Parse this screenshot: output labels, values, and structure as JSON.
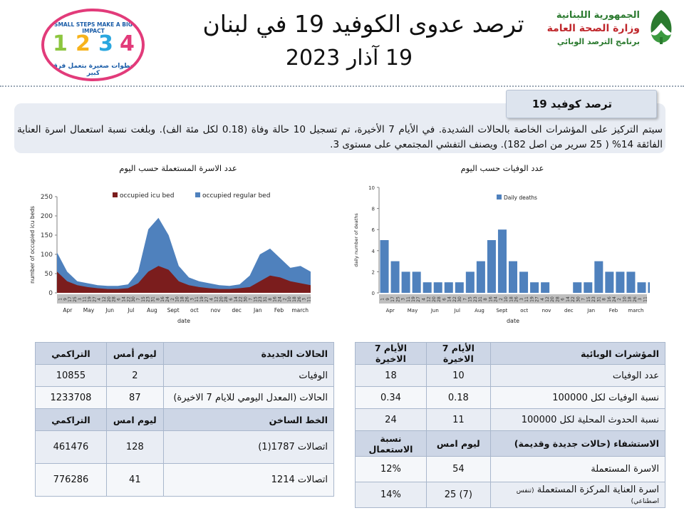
{
  "header": {
    "title": "ترصد عدوى الكوفيد 19 في لبنان",
    "date": "19 آذار 2023"
  },
  "logo_right": {
    "line1": "الجمهورية اللبنانية",
    "line2": "وزارة الصحة العامة",
    "line3": "برنامج الترصد الوبائي"
  },
  "logo_left": {
    "top_text": "SMALL STEPS MAKE A BIG IMPACT",
    "bottom_text": "خطوات صغيرة بتعمل فرق كبير",
    "digits": [
      "1",
      "2",
      "3",
      "4"
    ]
  },
  "summary": {
    "tab": "ترصد كوفيد 19",
    "text": "سيتم التركيز على المؤشرات الخاصة بالحالات الشديدة. في الأيام 7 الأخيرة، تم تسجيل 10 حالة وفاة (0.18 لكل مئة الف). وبلغت نسبة استعمال اسرة العناية الفائقة 14% ( 25 سرير من اصل 182). ويصنف التفشي المجتمعي على مستوى 3."
  },
  "colors": {
    "icu": "#7b1d1d",
    "regular": "#4f81bd",
    "deaths": "#4f81bd",
    "tick_strip": "#bfbfbf"
  },
  "chart_data": [
    {
      "type": "area",
      "title": "عدد الاسرة المستعملة حسب اليوم",
      "xlabel": "date",
      "ylabel": "number of occupied icu beds",
      "ylim": [
        0,
        250
      ],
      "yticks": [
        0,
        50,
        100,
        150,
        200,
        250
      ],
      "months": [
        "Apr",
        "May",
        "Jun",
        "Jul",
        "Aug",
        "Sept",
        "oct",
        "nov",
        "dec",
        "Jan",
        "Feb",
        "march"
      ],
      "day_ticks": [
        "1",
        "9",
        "17",
        "25",
        "3",
        "11",
        "19",
        "27",
        "4",
        "12",
        "20",
        "28",
        "6",
        "14",
        "22",
        "30",
        "7",
        "15",
        "23",
        "31",
        "8",
        "16",
        "24",
        "2",
        "10",
        "18",
        "26",
        "3",
        "11",
        "19",
        "27",
        "4",
        "12",
        "20",
        "28",
        "6",
        "14",
        "22",
        "30",
        "7",
        "15",
        "23",
        "31",
        "8",
        "16",
        "24",
        "2",
        "10",
        "18",
        "26",
        "3",
        "11"
      ],
      "legend": [
        "occupied icu bed",
        "occupied regular bed"
      ],
      "legend_position": "top",
      "grid": true,
      "series": [
        {
          "name": "occupied icu bed",
          "values": [
            55,
            30,
            20,
            15,
            12,
            10,
            10,
            12,
            25,
            55,
            70,
            60,
            30,
            20,
            15,
            12,
            10,
            10,
            12,
            15,
            30,
            45,
            40,
            30,
            25,
            20
          ]
        },
        {
          "name": "occupied regular bed",
          "values": [
            105,
            55,
            30,
            25,
            20,
            18,
            18,
            22,
            55,
            165,
            195,
            150,
            70,
            40,
            30,
            25,
            20,
            18,
            22,
            45,
            100,
            115,
            90,
            65,
            70,
            55
          ]
        }
      ]
    },
    {
      "type": "bar",
      "title": "عدد الوفيات حسب اليوم",
      "xlabel": "date",
      "ylabel": "daily number of deaths",
      "ylim": [
        0,
        10
      ],
      "yticks": [
        0,
        2,
        4,
        6,
        8,
        10
      ],
      "months": [
        "Apr",
        "May",
        "Jun",
        "Jul",
        "Aug",
        "Sept",
        "oct",
        "nov",
        "dec",
        "Jan",
        "Feb",
        "march"
      ],
      "day_ticks": [
        "1",
        "9",
        "17",
        "25",
        "3",
        "11",
        "19",
        "27",
        "4",
        "12",
        "20",
        "28",
        "6",
        "14",
        "22",
        "30",
        "7",
        "15",
        "23",
        "31",
        "8",
        "16",
        "24",
        "2",
        "10",
        "18",
        "26",
        "3",
        "11",
        "19",
        "27",
        "4",
        "12",
        "20",
        "28",
        "6",
        "14",
        "22",
        "30",
        "7",
        "15",
        "23",
        "31",
        "8",
        "16",
        "24",
        "2",
        "10",
        "18",
        "26",
        "3",
        "11"
      ],
      "legend": [
        "Daily deaths"
      ],
      "legend_position": "top-left",
      "grid": true,
      "series": [
        {
          "name": "Daily deaths",
          "values": [
            5,
            3,
            2,
            2,
            1,
            1,
            1,
            1,
            2,
            3,
            5,
            6,
            3,
            2,
            1,
            1,
            0,
            0,
            1,
            1,
            3,
            2,
            2,
            2,
            1,
            1
          ]
        }
      ]
    }
  ],
  "table_left": {
    "h1": {
      "label": "الحالات الجديدة",
      "yesterday": "ليوم أمس",
      "cumulative": "التراكمي"
    },
    "rows1": [
      {
        "label": "الوفيات",
        "yesterday": "2",
        "cumulative": "10855"
      },
      {
        "label": "الحالات (المعدل اليومي للايام 7 الاخيرة)",
        "yesterday": "87",
        "cumulative": "1233708"
      }
    ],
    "h2": {
      "label": "الخط الساخن",
      "yesterday": "ليوم امس",
      "cumulative": "التراكمي"
    },
    "rows2": [
      {
        "label": "اتصالات 1787(1)",
        "yesterday": "128",
        "cumulative": "461476"
      },
      {
        "label": "اتصالات 1214",
        "yesterday": "41",
        "cumulative": "776286"
      }
    ]
  },
  "table_right": {
    "h1": {
      "label": "المؤشرات الوبائية",
      "c1": "الأيام 7 الاخيرة",
      "c2": "الأيام 7 الاخيرة"
    },
    "rows1": [
      {
        "label": "عدد الوفيات",
        "c1": "10",
        "c2": "18"
      },
      {
        "label": "نسبة الوفيات لكل 100000",
        "c1": "0.18",
        "c2": "0.34"
      },
      {
        "label": "نسبة الحدوث المحلية لكل 100000",
        "c1": "11",
        "c2": "24"
      }
    ],
    "h2": {
      "label": "الاستشفاء (حالات جديدة وقديمة)",
      "c1": "ليوم امس",
      "c2": "نسبة الاستعمال"
    },
    "rows2": [
      {
        "label": "الاسرة المستعملة",
        "c1": "54",
        "c2": "12%"
      },
      {
        "label": "اسرة العناية المركزة المستعملة",
        "label_small": "(تنفس اصطناعي)",
        "c1": "(7) 25",
        "c2": "14%"
      }
    ]
  }
}
